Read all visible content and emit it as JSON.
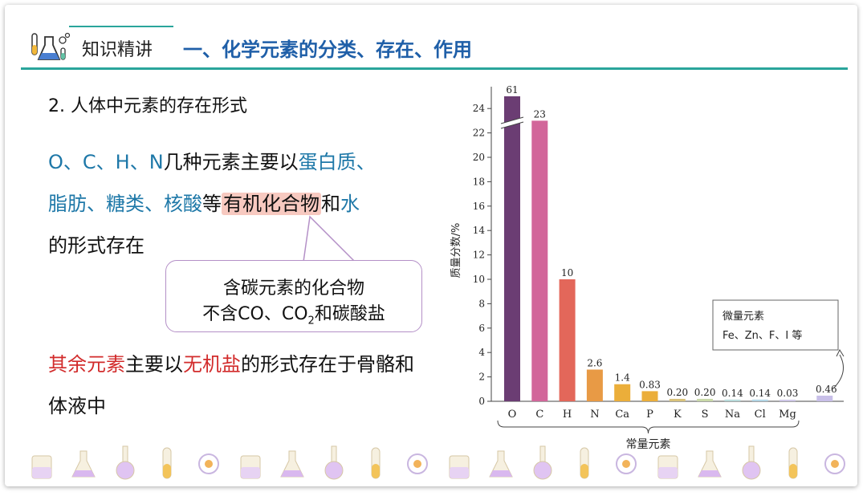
{
  "header": {
    "section_label": "知识精讲",
    "title": "一、化学元素的分类、存在、作用"
  },
  "content": {
    "heading": "2. 人体中元素的存在形式",
    "p1_elements": "O、C、H、N",
    "p1_mid": "几种元素主要以",
    "p1_term1": "蛋白质、",
    "p1_term2": "脂肪、糖类、核酸",
    "p1_deng": "等",
    "p1_organic": "有机化合物",
    "p1_and": "和",
    "p1_water": "水",
    "p1_end": "的形式存在",
    "callout_line1": "含碳元素的化合物",
    "callout_line2_a": "不含CO、CO",
    "callout_line2_sub": "2",
    "callout_line2_b": "和碳酸盐",
    "p2_red1": "其余元素",
    "p2_mid": "主要以",
    "p2_red2": "无机盐",
    "p2_end": "的形式存在于骨骼和体液中"
  },
  "chart_data": {
    "type": "bar",
    "categories": [
      "O",
      "C",
      "H",
      "N",
      "Ca",
      "P",
      "K",
      "S",
      "Na",
      "Cl",
      "Mg",
      ""
    ],
    "values": [
      61,
      23,
      10,
      2.6,
      1.4,
      0.83,
      0.2,
      0.2,
      0.14,
      0.14,
      0.03,
      0.46
    ],
    "value_labels": [
      "61",
      "23",
      "10",
      "2.6",
      "1.4",
      "0.83",
      "0.20",
      "0.20",
      "0.14",
      "0.14",
      "0.03",
      "0.46"
    ],
    "colors": [
      "#6b3d73",
      "#d2669a",
      "#e3675a",
      "#e89a45",
      "#ebae3a",
      "#ebae3a",
      "#d9c27a",
      "#c9d9a8",
      "#b9dcdc",
      "#b3d6e6",
      "#cfc8e8",
      "#c8bfe8"
    ],
    "ylabel": "质量分数/%",
    "xlabel": "常量元素",
    "ylim": [
      0,
      25
    ],
    "yticks": [
      "0",
      "2",
      "4",
      "6",
      "8",
      "10",
      "12",
      "14",
      "16",
      "18",
      "20",
      "22",
      "24"
    ],
    "axis_break": true,
    "trace_box_line1": "微量元素",
    "trace_box_line2": "Fe、Zn、F、I 等"
  },
  "icons": [
    "beaker-icon",
    "round-flask-icon",
    "volumetric-flask-icon",
    "boiling-flask-icon",
    "test-tube-icon",
    "conical-flask-icon",
    "reagent-bottle-icon",
    "graduated-cylinder-icon",
    "alcohol-lamp-icon",
    "thermometer-icon",
    "iron-stand-icon",
    "beaker-stir-icon",
    "tripod-icon",
    "microscope-icon",
    "dropper-icon",
    "funnel-icon",
    "molecule-icon",
    "atom-icon",
    "hexagon-structure-icon",
    "sphere-model-icon"
  ]
}
